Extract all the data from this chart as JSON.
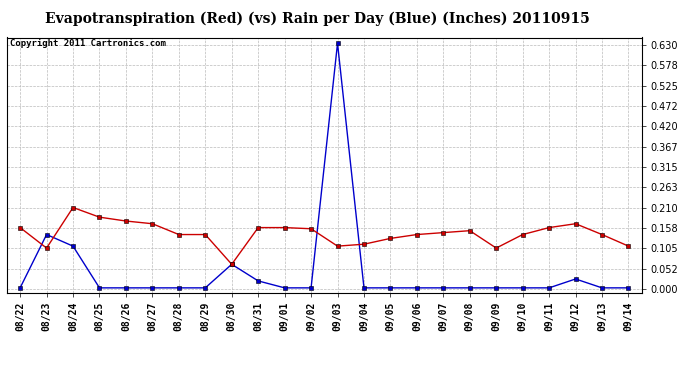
{
  "title": "Evapotranspiration (Red) (vs) Rain per Day (Blue) (Inches) 20110915",
  "copyright_text": "Copyright 2011 Cartronics.com",
  "labels": [
    "08/22",
    "08/23",
    "08/24",
    "08/25",
    "08/26",
    "08/27",
    "08/28",
    "08/29",
    "08/30",
    "08/31",
    "09/01",
    "09/02",
    "09/03",
    "09/04",
    "09/05",
    "09/06",
    "09/07",
    "09/08",
    "09/09",
    "09/10",
    "09/11",
    "09/12",
    "09/13",
    "09/14"
  ],
  "red_data": [
    0.158,
    0.105,
    0.21,
    0.185,
    0.175,
    0.168,
    0.14,
    0.14,
    0.063,
    0.158,
    0.158,
    0.155,
    0.11,
    0.115,
    0.13,
    0.14,
    0.145,
    0.15,
    0.105,
    0.14,
    0.158,
    0.168,
    0.14,
    0.11
  ],
  "blue_data": [
    0.002,
    0.14,
    0.11,
    0.002,
    0.002,
    0.002,
    0.002,
    0.002,
    0.063,
    0.02,
    0.002,
    0.002,
    0.635,
    0.002,
    0.002,
    0.002,
    0.002,
    0.002,
    0.002,
    0.002,
    0.002,
    0.025,
    0.002,
    0.002
  ],
  "ylim_min": -0.01,
  "ylim_max": 0.65,
  "yticks": [
    0.0,
    0.052,
    0.105,
    0.158,
    0.21,
    0.263,
    0.315,
    0.367,
    0.42,
    0.472,
    0.525,
    0.578,
    0.63
  ],
  "red_color": "#cc0000",
  "blue_color": "#0000cc",
  "marker_color": "#000000",
  "bg_color": "#ffffff",
  "grid_color": "#bbbbbb",
  "title_fontsize": 10,
  "copyright_fontsize": 6.5,
  "tick_fontsize": 7
}
